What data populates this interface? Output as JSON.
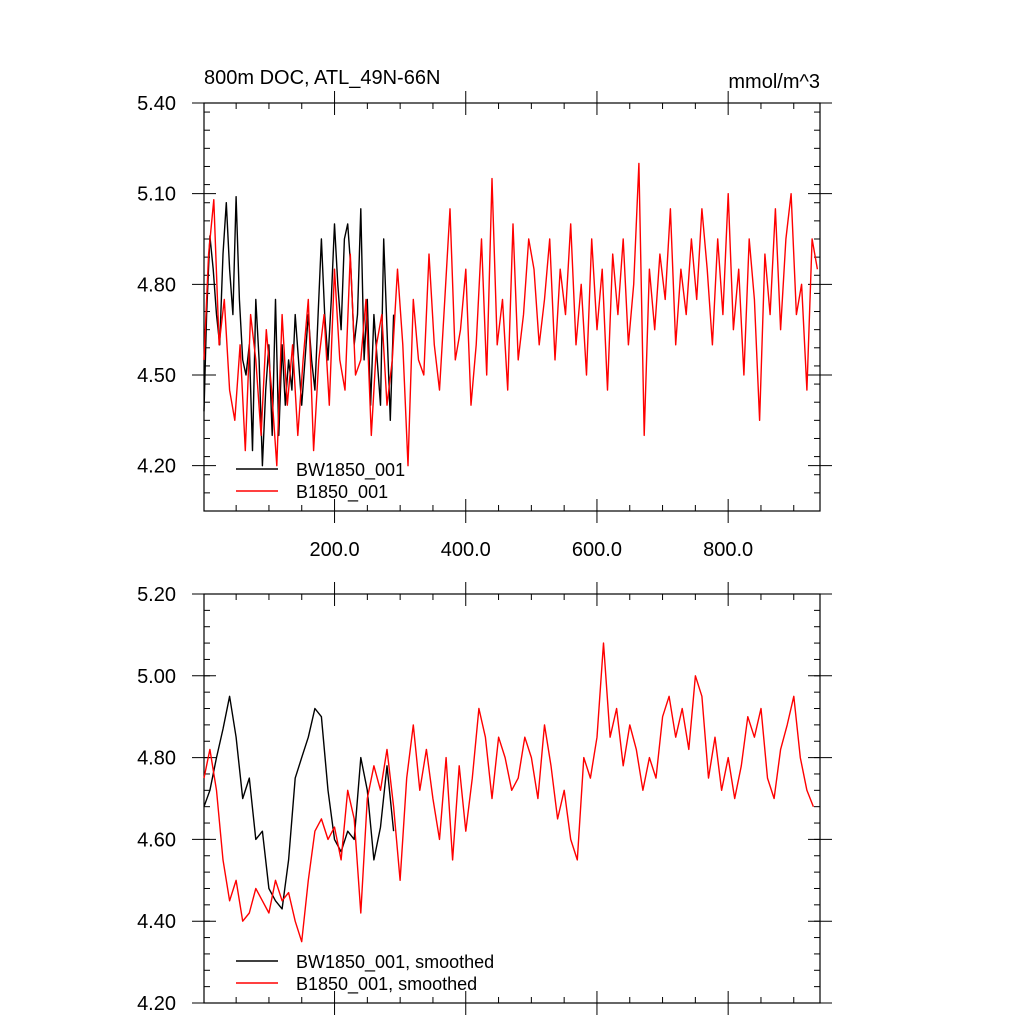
{
  "chart_data": [
    {
      "type": "line",
      "title": "800m DOC, ATL_49N-66N",
      "units": "mmol/m^3",
      "xlim": [
        1,
        940
      ],
      "ylim": [
        4.05,
        5.4
      ],
      "xticks": [
        "200.0",
        "400.0",
        "600.0",
        "800.0"
      ],
      "yticks": [
        "4.20",
        "4.50",
        "4.80",
        "5.10",
        "5.40"
      ],
      "series": [
        {
          "name": "BW1850_001",
          "color": "#000000",
          "x": [
            1,
            5,
            10,
            15,
            20,
            25,
            30,
            35,
            40,
            45,
            50,
            55,
            60,
            65,
            70,
            75,
            80,
            85,
            90,
            95,
            100,
            105,
            110,
            115,
            120,
            125,
            130,
            135,
            140,
            145,
            150,
            155,
            160,
            165,
            170,
            175,
            180,
            185,
            190,
            195,
            200,
            205,
            210,
            215,
            220,
            225,
            230,
            235,
            240,
            245,
            250,
            255,
            260,
            265,
            270,
            275,
            280,
            285,
            290
          ],
          "y": [
            4.38,
            4.7,
            4.96,
            4.85,
            4.7,
            4.6,
            4.9,
            5.07,
            4.85,
            4.7,
            5.09,
            4.75,
            4.55,
            4.5,
            4.6,
            4.25,
            4.75,
            4.55,
            4.2,
            4.45,
            4.6,
            4.3,
            4.75,
            4.3,
            4.6,
            4.4,
            4.55,
            4.45,
            4.7,
            4.55,
            4.4,
            4.55,
            4.7,
            4.55,
            4.45,
            4.7,
            4.95,
            4.7,
            4.55,
            4.75,
            5.0,
            4.8,
            4.65,
            4.95,
            5.0,
            4.85,
            4.6,
            4.7,
            5.05,
            4.55,
            4.75,
            4.4,
            4.7,
            4.55,
            4.4,
            4.95,
            4.65,
            4.35,
            4.7
          ]
        },
        {
          "name": "B1850_001",
          "color": "#ff0000",
          "x": [
            1,
            8,
            16,
            24,
            32,
            40,
            48,
            56,
            64,
            72,
            80,
            88,
            96,
            104,
            112,
            120,
            128,
            136,
            144,
            152,
            160,
            168,
            176,
            184,
            192,
            200,
            208,
            216,
            224,
            232,
            240,
            248,
            256,
            264,
            272,
            280,
            288,
            296,
            304,
            312,
            320,
            328,
            336,
            344,
            352,
            360,
            368,
            376,
            384,
            392,
            400,
            408,
            416,
            424,
            432,
            440,
            448,
            456,
            464,
            472,
            480,
            488,
            496,
            504,
            512,
            520,
            528,
            536,
            544,
            552,
            560,
            568,
            576,
            584,
            592,
            600,
            608,
            616,
            624,
            632,
            640,
            648,
            656,
            664,
            672,
            680,
            688,
            696,
            704,
            712,
            720,
            728,
            736,
            744,
            752,
            760,
            768,
            776,
            784,
            792,
            800,
            808,
            816,
            824,
            832,
            840,
            848,
            856,
            864,
            872,
            880,
            888,
            896,
            904,
            912,
            920,
            928,
            936
          ],
          "y": [
            4.55,
            4.9,
            5.08,
            4.6,
            4.75,
            4.45,
            4.35,
            4.6,
            4.25,
            4.7,
            4.55,
            4.3,
            4.65,
            4.45,
            4.2,
            4.7,
            4.4,
            4.6,
            4.3,
            4.55,
            4.75,
            4.25,
            4.55,
            4.7,
            4.4,
            4.85,
            4.55,
            4.45,
            4.9,
            4.5,
            4.55,
            4.75,
            4.3,
            4.6,
            4.7,
            4.4,
            4.55,
            4.85,
            4.6,
            4.2,
            4.75,
            4.55,
            4.5,
            4.9,
            4.6,
            4.45,
            4.75,
            5.05,
            4.55,
            4.65,
            4.85,
            4.4,
            4.6,
            4.95,
            4.5,
            5.15,
            4.6,
            4.75,
            4.45,
            5.0,
            4.55,
            4.7,
            4.95,
            4.85,
            4.6,
            4.75,
            4.95,
            4.55,
            4.85,
            4.7,
            5.0,
            4.6,
            4.8,
            4.5,
            4.95,
            4.65,
            4.85,
            4.45,
            4.9,
            4.7,
            4.95,
            4.6,
            4.8,
            5.2,
            4.3,
            4.85,
            4.65,
            4.9,
            4.75,
            5.05,
            4.6,
            4.85,
            4.7,
            4.95,
            4.75,
            5.05,
            4.85,
            4.6,
            4.95,
            4.7,
            5.1,
            4.65,
            4.85,
            4.5,
            4.95,
            4.75,
            4.35,
            4.9,
            4.7,
            5.05,
            4.65,
            4.95,
            5.1,
            4.7,
            4.8,
            4.45,
            4.95,
            4.85
          ]
        }
      ],
      "legend": [
        "BW1850_001",
        "B1850_001"
      ]
    },
    {
      "type": "line",
      "title": "",
      "xlim": [
        1,
        940
      ],
      "ylim": [
        4.2,
        5.2
      ],
      "yticks": [
        "4.20",
        "4.40",
        "4.60",
        "4.80",
        "5.00",
        "5.20"
      ],
      "series": [
        {
          "name": "BW1850_001, smoothed",
          "color": "#000000",
          "x": [
            1,
            10,
            20,
            30,
            40,
            50,
            60,
            70,
            80,
            90,
            100,
            110,
            120,
            130,
            140,
            150,
            160,
            170,
            180,
            190,
            200,
            210,
            220,
            230,
            240,
            250,
            260,
            270,
            280,
            290
          ],
          "y": [
            4.68,
            4.72,
            4.8,
            4.87,
            4.95,
            4.85,
            4.7,
            4.75,
            4.6,
            4.62,
            4.48,
            4.45,
            4.43,
            4.55,
            4.75,
            4.8,
            4.85,
            4.92,
            4.9,
            4.72,
            4.6,
            4.57,
            4.62,
            4.6,
            4.8,
            4.72,
            4.55,
            4.63,
            4.78,
            4.62
          ]
        },
        {
          "name": "B1850_001, smoothed",
          "color": "#ff0000",
          "x": [
            1,
            10,
            20,
            30,
            40,
            50,
            60,
            70,
            80,
            90,
            100,
            110,
            120,
            130,
            140,
            150,
            160,
            170,
            180,
            190,
            200,
            210,
            220,
            230,
            240,
            250,
            260,
            270,
            280,
            290,
            300,
            310,
            320,
            330,
            340,
            350,
            360,
            370,
            380,
            390,
            400,
            410,
            420,
            430,
            440,
            450,
            460,
            470,
            480,
            490,
            500,
            510,
            520,
            530,
            540,
            550,
            560,
            570,
            580,
            590,
            600,
            610,
            620,
            630,
            640,
            650,
            660,
            670,
            680,
            690,
            700,
            710,
            720,
            730,
            740,
            750,
            760,
            770,
            780,
            790,
            800,
            810,
            820,
            830,
            840,
            850,
            860,
            870,
            880,
            890,
            900,
            910,
            920,
            930
          ],
          "y": [
            4.75,
            4.82,
            4.72,
            4.55,
            4.45,
            4.5,
            4.4,
            4.42,
            4.48,
            4.45,
            4.42,
            4.5,
            4.45,
            4.47,
            4.4,
            4.35,
            4.5,
            4.62,
            4.65,
            4.6,
            4.63,
            4.55,
            4.72,
            4.65,
            4.42,
            4.7,
            4.78,
            4.72,
            4.82,
            4.68,
            4.5,
            4.75,
            4.88,
            4.72,
            4.82,
            4.7,
            4.6,
            4.8,
            4.55,
            4.78,
            4.62,
            4.75,
            4.92,
            4.85,
            4.7,
            4.85,
            4.8,
            4.72,
            4.75,
            4.85,
            4.8,
            4.7,
            4.88,
            4.78,
            4.65,
            4.72,
            4.6,
            4.55,
            4.8,
            4.75,
            4.85,
            5.08,
            4.85,
            4.92,
            4.78,
            4.88,
            4.82,
            4.72,
            4.8,
            4.75,
            4.9,
            4.95,
            4.85,
            4.92,
            4.82,
            5.0,
            4.95,
            4.75,
            4.85,
            4.72,
            4.8,
            4.7,
            4.78,
            4.9,
            4.85,
            4.92,
            4.75,
            4.7,
            4.82,
            4.88,
            4.95,
            4.8,
            4.72,
            4.68
          ]
        }
      ],
      "legend": [
        "BW1850_001, smoothed",
        "B1850_001, smoothed"
      ]
    }
  ]
}
